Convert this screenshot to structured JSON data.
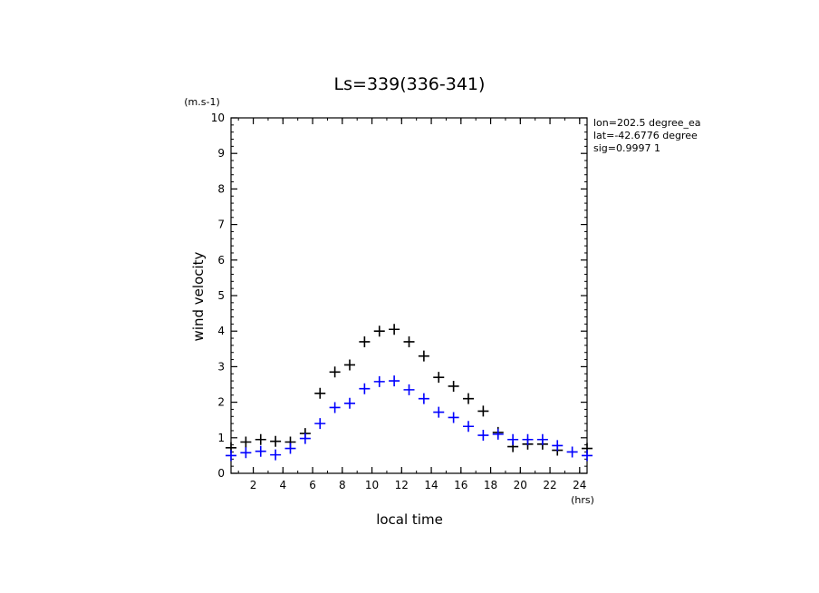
{
  "chart_data": {
    "type": "scatter",
    "title": "Ls=339(336-341)",
    "xlabel": "local time",
    "ylabel": "wind velocity",
    "x_unit": "(hrs)",
    "y_unit": "(m.s-1)",
    "xlim": [
      0.5,
      24.5
    ],
    "ylim": [
      0,
      10
    ],
    "x_ticks": [
      2,
      4,
      6,
      8,
      10,
      12,
      14,
      16,
      18,
      20,
      22,
      24
    ],
    "y_ticks": [
      0,
      1,
      2,
      3,
      4,
      5,
      6,
      7,
      8,
      9,
      10
    ],
    "annotations": [
      "lon=202.5 degree_ea",
      "lat=-42.6776 degree",
      "sig=0.9997 1"
    ],
    "x": [
      0.5,
      1.5,
      2.5,
      3.5,
      4.5,
      5.5,
      6.5,
      7.5,
      8.5,
      9.5,
      10.5,
      11.5,
      12.5,
      13.5,
      14.5,
      15.5,
      16.5,
      17.5,
      18.5,
      19.5,
      20.5,
      21.5,
      22.5,
      23.5,
      24.5
    ],
    "series": [
      {
        "color": "#000000",
        "values": [
          0.72,
          0.88,
          0.95,
          0.9,
          0.88,
          1.12,
          2.25,
          2.85,
          3.05,
          3.7,
          4.0,
          4.05,
          3.7,
          3.3,
          2.7,
          2.45,
          2.1,
          1.75,
          1.15,
          0.75,
          0.82,
          0.82,
          0.65,
          null,
          0.7
        ]
      },
      {
        "color": "#0000ff",
        "values": [
          0.5,
          0.58,
          0.62,
          0.52,
          0.7,
          0.98,
          1.4,
          1.85,
          1.97,
          2.38,
          2.58,
          2.6,
          2.35,
          2.1,
          1.72,
          1.57,
          1.32,
          1.07,
          1.1,
          0.95,
          0.95,
          0.95,
          0.78,
          0.6,
          0.5
        ]
      }
    ]
  }
}
